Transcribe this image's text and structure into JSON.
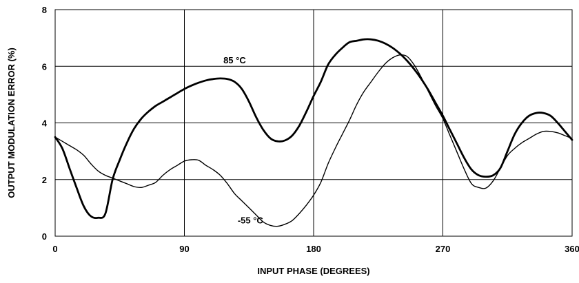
{
  "chart_data": {
    "type": "line",
    "title": "",
    "xlabel": "INPUT PHASE (DEGREES)",
    "ylabel": "OUTPUT MODULATION ERROR (%)",
    "xlim": [
      0,
      360
    ],
    "ylim": [
      0,
      8
    ],
    "x_ticks": [
      0,
      90,
      180,
      270,
      360
    ],
    "y_ticks": [
      0,
      2,
      4,
      6,
      8
    ],
    "x_tick_labels": [
      "0",
      "90",
      "180",
      "270",
      "360"
    ],
    "y_tick_labels": [
      "0",
      "2",
      "4",
      "6",
      "8"
    ],
    "grid": true,
    "series": [
      {
        "name": "85 °C",
        "style": "thick",
        "color": "#000000",
        "points": [
          [
            0,
            3.5
          ],
          [
            5,
            3.1
          ],
          [
            10,
            2.4
          ],
          [
            15,
            1.7
          ],
          [
            20,
            1.05
          ],
          [
            25,
            0.7
          ],
          [
            30,
            0.65
          ],
          [
            35,
            0.8
          ],
          [
            40,
            2.0
          ],
          [
            45,
            2.7
          ],
          [
            50,
            3.3
          ],
          [
            55,
            3.8
          ],
          [
            60,
            4.15
          ],
          [
            65,
            4.4
          ],
          [
            70,
            4.6
          ],
          [
            75,
            4.75
          ],
          [
            80,
            4.9
          ],
          [
            85,
            5.05
          ],
          [
            90,
            5.2
          ],
          [
            95,
            5.32
          ],
          [
            100,
            5.42
          ],
          [
            105,
            5.5
          ],
          [
            110,
            5.55
          ],
          [
            115,
            5.57
          ],
          [
            120,
            5.55
          ],
          [
            125,
            5.45
          ],
          [
            130,
            5.2
          ],
          [
            135,
            4.75
          ],
          [
            140,
            4.2
          ],
          [
            145,
            3.75
          ],
          [
            150,
            3.45
          ],
          [
            155,
            3.35
          ],
          [
            160,
            3.38
          ],
          [
            165,
            3.55
          ],
          [
            170,
            3.9
          ],
          [
            175,
            4.4
          ],
          [
            180,
            4.95
          ],
          [
            185,
            5.45
          ],
          [
            190,
            6.05
          ],
          [
            195,
            6.4
          ],
          [
            200,
            6.65
          ],
          [
            205,
            6.85
          ],
          [
            210,
            6.9
          ],
          [
            215,
            6.95
          ],
          [
            220,
            6.95
          ],
          [
            225,
            6.9
          ],
          [
            230,
            6.8
          ],
          [
            235,
            6.65
          ],
          [
            240,
            6.45
          ],
          [
            245,
            6.2
          ],
          [
            250,
            5.9
          ],
          [
            255,
            5.55
          ],
          [
            260,
            5.15
          ],
          [
            265,
            4.7
          ],
          [
            270,
            4.25
          ],
          [
            275,
            3.75
          ],
          [
            280,
            3.25
          ],
          [
            285,
            2.75
          ],
          [
            290,
            2.35
          ],
          [
            295,
            2.15
          ],
          [
            300,
            2.1
          ],
          [
            305,
            2.15
          ],
          [
            310,
            2.4
          ],
          [
            315,
            3.0
          ],
          [
            320,
            3.6
          ],
          [
            325,
            4.0
          ],
          [
            330,
            4.25
          ],
          [
            335,
            4.35
          ],
          [
            340,
            4.35
          ],
          [
            345,
            4.25
          ],
          [
            350,
            4.0
          ],
          [
            355,
            3.7
          ],
          [
            360,
            3.4
          ]
        ]
      },
      {
        "name": "-55 °C",
        "style": "thin",
        "color": "#000000",
        "points": [
          [
            0,
            3.5
          ],
          [
            5,
            3.35
          ],
          [
            10,
            3.2
          ],
          [
            15,
            3.05
          ],
          [
            20,
            2.85
          ],
          [
            25,
            2.55
          ],
          [
            30,
            2.3
          ],
          [
            35,
            2.15
          ],
          [
            40,
            2.05
          ],
          [
            45,
            1.95
          ],
          [
            50,
            1.85
          ],
          [
            55,
            1.75
          ],
          [
            60,
            1.72
          ],
          [
            65,
            1.8
          ],
          [
            70,
            1.9
          ],
          [
            75,
            2.15
          ],
          [
            80,
            2.35
          ],
          [
            85,
            2.5
          ],
          [
            90,
            2.65
          ],
          [
            95,
            2.7
          ],
          [
            100,
            2.68
          ],
          [
            105,
            2.5
          ],
          [
            110,
            2.35
          ],
          [
            115,
            2.15
          ],
          [
            120,
            1.85
          ],
          [
            125,
            1.5
          ],
          [
            130,
            1.25
          ],
          [
            135,
            1.0
          ],
          [
            140,
            0.75
          ],
          [
            145,
            0.5
          ],
          [
            150,
            0.38
          ],
          [
            155,
            0.35
          ],
          [
            160,
            0.42
          ],
          [
            165,
            0.55
          ],
          [
            170,
            0.8
          ],
          [
            175,
            1.1
          ],
          [
            180,
            1.45
          ],
          [
            185,
            1.9
          ],
          [
            190,
            2.55
          ],
          [
            195,
            3.1
          ],
          [
            200,
            3.6
          ],
          [
            205,
            4.1
          ],
          [
            210,
            4.65
          ],
          [
            215,
            5.1
          ],
          [
            220,
            5.45
          ],
          [
            225,
            5.8
          ],
          [
            230,
            6.1
          ],
          [
            235,
            6.3
          ],
          [
            240,
            6.4
          ],
          [
            245,
            6.35
          ],
          [
            250,
            6.05
          ],
          [
            255,
            5.6
          ],
          [
            260,
            5.1
          ],
          [
            265,
            4.6
          ],
          [
            270,
            4.15
          ],
          [
            275,
            3.55
          ],
          [
            280,
            2.95
          ],
          [
            285,
            2.35
          ],
          [
            290,
            1.85
          ],
          [
            295,
            1.72
          ],
          [
            300,
            1.7
          ],
          [
            305,
            1.95
          ],
          [
            310,
            2.4
          ],
          [
            315,
            2.85
          ],
          [
            320,
            3.1
          ],
          [
            325,
            3.3
          ],
          [
            330,
            3.45
          ],
          [
            335,
            3.6
          ],
          [
            340,
            3.7
          ],
          [
            345,
            3.7
          ],
          [
            350,
            3.65
          ],
          [
            355,
            3.55
          ],
          [
            360,
            3.45
          ]
        ]
      }
    ],
    "annotations": [
      {
        "text": "85 °C",
        "x": 125,
        "y": 6.1
      },
      {
        "text": "-55 °C",
        "x": 136,
        "y": 0.45
      }
    ]
  }
}
